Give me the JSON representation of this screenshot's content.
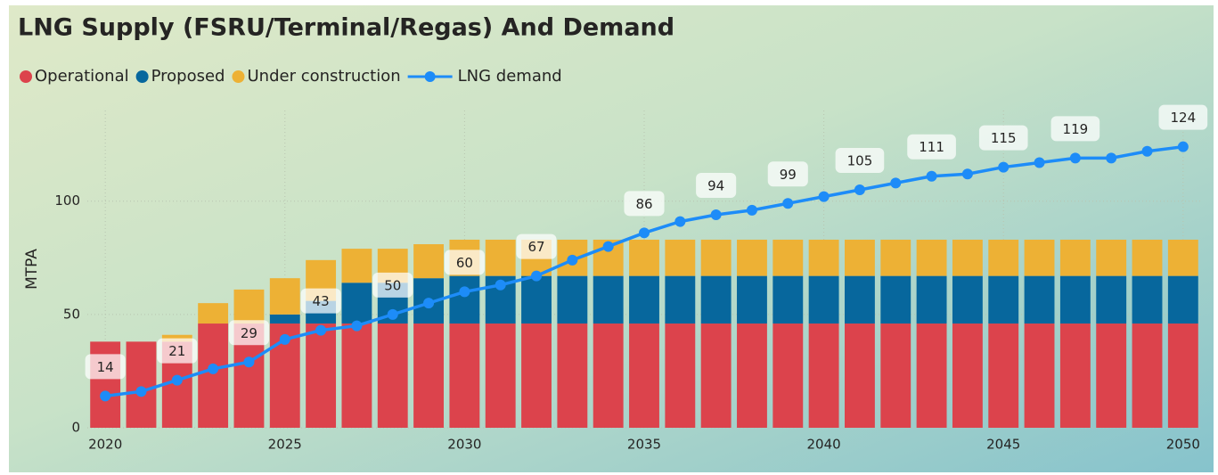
{
  "chart_data": {
    "type": "stacked-bar-line",
    "title": "LNG Supply (FSRU/Terminal/Regas) And Demand",
    "y_label": "MTPA",
    "x": [
      2020,
      2021,
      2022,
      2023,
      2024,
      2025,
      2026,
      2027,
      2028,
      2029,
      2030,
      2031,
      2032,
      2033,
      2034,
      2035,
      2036,
      2037,
      2038,
      2039,
      2040,
      2041,
      2042,
      2043,
      2044,
      2045,
      2046,
      2047,
      2048,
      2049,
      2050
    ],
    "xlim": [
      2019.5,
      2050.5
    ],
    "xticks": [
      2020,
      2025,
      2030,
      2035,
      2040,
      2045,
      2050
    ],
    "ylim": [
      0,
      140
    ],
    "yticks": [
      0,
      50,
      100
    ],
    "grid": true,
    "series": [
      {
        "name": "Operational",
        "color": "#dc434c",
        "kind": "bar",
        "values": [
          38,
          38,
          38,
          46,
          46,
          46,
          46,
          46,
          46,
          46,
          46,
          46,
          46,
          46,
          46,
          46,
          46,
          46,
          46,
          46,
          46,
          46,
          46,
          46,
          46,
          46,
          46,
          46,
          46,
          46,
          46
        ]
      },
      {
        "name": "Proposed",
        "color": "#07679d",
        "kind": "bar",
        "values": [
          0,
          0,
          0,
          0,
          0,
          4,
          10,
          18,
          18,
          20,
          21,
          21,
          21,
          21,
          21,
          21,
          21,
          21,
          21,
          21,
          21,
          21,
          21,
          21,
          21,
          21,
          21,
          21,
          21,
          21,
          21
        ]
      },
      {
        "name": "Under construction",
        "color": "#edb135",
        "kind": "bar",
        "values": [
          0,
          0,
          3,
          9,
          15,
          16,
          18,
          15,
          15,
          15,
          16,
          16,
          16,
          16,
          16,
          16,
          16,
          16,
          16,
          16,
          16,
          16,
          16,
          16,
          16,
          16,
          16,
          16,
          16,
          16,
          16
        ]
      },
      {
        "name": "LNG demand",
        "color": "#1d8cf8",
        "kind": "line",
        "values": [
          14,
          16,
          21,
          26,
          29,
          39,
          43,
          45,
          50,
          55,
          60,
          63,
          67,
          74,
          80,
          86,
          91,
          94,
          96,
          99,
          102,
          105,
          108,
          111,
          112,
          115,
          117,
          119,
          119,
          122,
          124
        ],
        "value_labels": [
          "14",
          null,
          "21",
          null,
          "29",
          null,
          "43",
          null,
          "50",
          null,
          "60",
          null,
          "67",
          null,
          null,
          "86",
          null,
          "94",
          null,
          "99",
          null,
          "105",
          null,
          "111",
          null,
          "115",
          null,
          "119",
          null,
          null,
          "124"
        ]
      }
    ]
  }
}
